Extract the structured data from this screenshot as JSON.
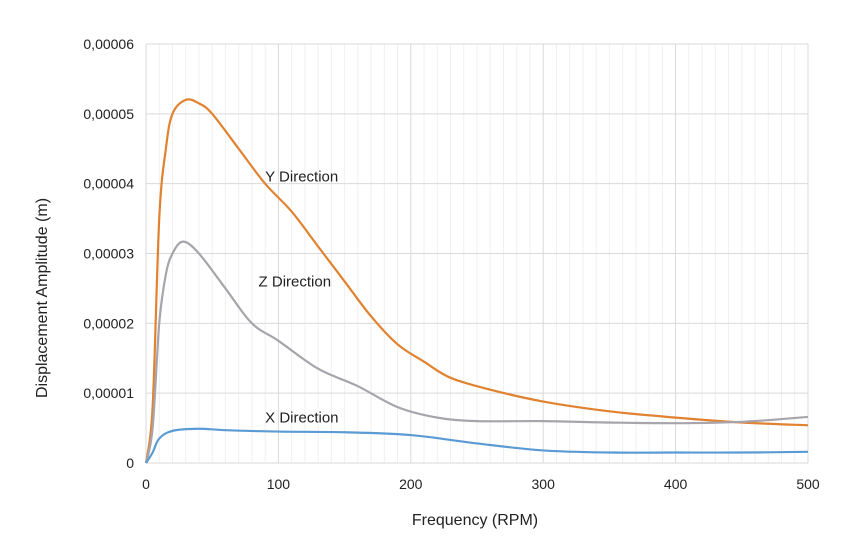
{
  "chart_data": {
    "type": "line",
    "xlabel": "Frequency (RPM)",
    "ylabel": "Displacement Amplitude (m)",
    "xlim": [
      0,
      500
    ],
    "ylim": [
      0,
      6e-05
    ],
    "grid": true,
    "x_ticks": [
      0,
      100,
      200,
      300,
      400,
      500
    ],
    "x_tick_labels": [
      "0",
      "100",
      "200",
      "300",
      "400",
      "500"
    ],
    "y_ticks": [
      0,
      1e-05,
      2e-05,
      3e-05,
      4e-05,
      5e-05,
      6e-05
    ],
    "y_tick_labels": [
      "0",
      "0,00001",
      "0,00002",
      "0,00003",
      "0,00004",
      "0,00005",
      "0,00006"
    ],
    "series": [
      {
        "name": "Y Direction",
        "color": "#E0822F",
        "label_at": [
          90,
          4.1e-05
        ],
        "points": [
          [
            0,
            0
          ],
          [
            5,
            8e-06
          ],
          [
            10,
            3.5e-05
          ],
          [
            15,
            4.5e-05
          ],
          [
            20,
            5e-05
          ],
          [
            30,
            5.2e-05
          ],
          [
            40,
            5.15e-05
          ],
          [
            50,
            5e-05
          ],
          [
            70,
            4.5e-05
          ],
          [
            90,
            4e-05
          ],
          [
            110,
            3.6e-05
          ],
          [
            130,
            3.1e-05
          ],
          [
            150,
            2.6e-05
          ],
          [
            170,
            2.1e-05
          ],
          [
            190,
            1.7e-05
          ],
          [
            210,
            1.45e-05
          ],
          [
            230,
            1.22e-05
          ],
          [
            260,
            1.05e-05
          ],
          [
            300,
            8.8e-06
          ],
          [
            350,
            7.4e-06
          ],
          [
            400,
            6.5e-06
          ],
          [
            450,
            5.8e-06
          ],
          [
            500,
            5.4e-06
          ]
        ]
      },
      {
        "name": "Z Direction",
        "color": "#A7A4AB",
        "label_at": [
          85,
          2.6e-05
        ],
        "points": [
          [
            0,
            0
          ],
          [
            5,
            5e-06
          ],
          [
            10,
            2e-05
          ],
          [
            15,
            2.7e-05
          ],
          [
            20,
            3e-05
          ],
          [
            28,
            3.17e-05
          ],
          [
            40,
            3e-05
          ],
          [
            60,
            2.5e-05
          ],
          [
            80,
            2e-05
          ],
          [
            100,
            1.75e-05
          ],
          [
            130,
            1.35e-05
          ],
          [
            160,
            1.1e-05
          ],
          [
            190,
            8e-06
          ],
          [
            220,
            6.5e-06
          ],
          [
            250,
            6e-06
          ],
          [
            300,
            6e-06
          ],
          [
            350,
            5.8e-06
          ],
          [
            400,
            5.7e-06
          ],
          [
            450,
            5.9e-06
          ],
          [
            500,
            6.6e-06
          ]
        ]
      },
      {
        "name": "X Direction",
        "color": "#5B9BD5",
        "label_at": [
          90,
          6.5e-06
        ],
        "points": [
          [
            0,
            0
          ],
          [
            5,
            1.5e-06
          ],
          [
            10,
            3.5e-06
          ],
          [
            20,
            4.6e-06
          ],
          [
            40,
            4.9e-06
          ],
          [
            60,
            4.7e-06
          ],
          [
            100,
            4.5e-06
          ],
          [
            150,
            4.4e-06
          ],
          [
            200,
            4e-06
          ],
          [
            250,
            2.8e-06
          ],
          [
            300,
            1.8e-06
          ],
          [
            350,
            1.5e-06
          ],
          [
            400,
            1.5e-06
          ],
          [
            450,
            1.5e-06
          ],
          [
            500,
            1.6e-06
          ]
        ]
      }
    ]
  }
}
